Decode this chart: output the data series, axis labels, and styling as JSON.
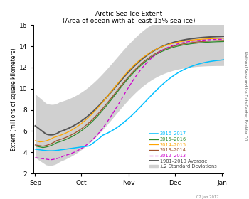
{
  "title": "Arctic Sea Ice Extent",
  "subtitle": "(Area of ocean with at least 15% sea ice)",
  "ylabel": "Extent (millions of square kilometers)",
  "right_label": "National Snow and Ice Data Center, Boulder CO",
  "bottom_label": "02 Jan 2017",
  "ylim": [
    2,
    16
  ],
  "yticks": [
    2,
    4,
    6,
    8,
    10,
    12,
    14,
    16
  ],
  "colors": {
    "2016-2017": "#00bfff",
    "2015-2016": "#2e8b2e",
    "2014-2015": "#ffa500",
    "2013-2014": "#a0522d",
    "2012-2013": "#cc00cc",
    "average": "#555555",
    "shading": "#d0d0d0"
  },
  "month_labels": [
    "Sep",
    "Oct",
    "Nov",
    "Dec",
    "Jan"
  ],
  "month_positions": [
    0,
    30,
    61,
    91,
    122
  ]
}
